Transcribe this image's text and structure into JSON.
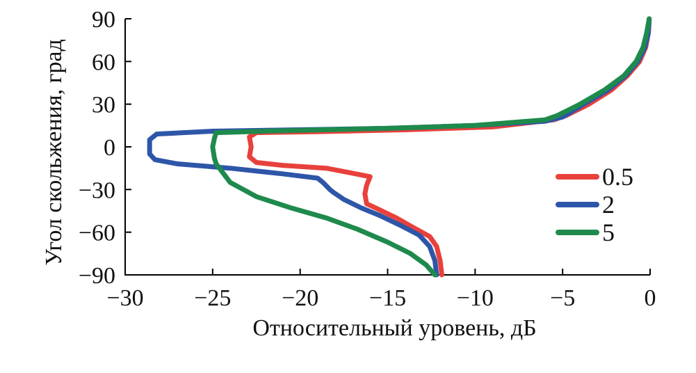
{
  "chart_data": {
    "type": "line",
    "xlabel": "Относительный уровень, дБ",
    "ylabel": "Угол скольжения, град",
    "xlim": [
      -30,
      0
    ],
    "ylim": [
      -90,
      90
    ],
    "x_ticks": [
      -30,
      -25,
      -20,
      -15,
      -10,
      -5,
      0
    ],
    "y_ticks": [
      -90,
      -60,
      -30,
      0,
      30,
      60,
      90
    ],
    "x_tick_labels": [
      "−30",
      "−25",
      "−20",
      "−15",
      "−10",
      "−5",
      "0"
    ],
    "y_tick_labels": [
      "−90",
      "−60",
      "−30",
      "0",
      "30",
      "60",
      "90"
    ],
    "grid": false,
    "legend_position": "right-middle",
    "series": [
      {
        "name": "0.5",
        "color": "#e8413c",
        "points": [
          [
            -11.9,
            -90
          ],
          [
            -12.0,
            -80
          ],
          [
            -12.2,
            -70
          ],
          [
            -12.6,
            -63
          ],
          [
            -13.5,
            -57
          ],
          [
            -14.5,
            -50
          ],
          [
            -15.5,
            -44
          ],
          [
            -16.2,
            -40
          ],
          [
            -16.3,
            -33
          ],
          [
            -16.2,
            -27
          ],
          [
            -16.0,
            -21
          ],
          [
            -16.6,
            -19.5
          ],
          [
            -18.5,
            -15
          ],
          [
            -21.0,
            -13
          ],
          [
            -22.5,
            -11
          ],
          [
            -22.9,
            -7
          ],
          [
            -22.8,
            0
          ],
          [
            -22.9,
            7
          ],
          [
            -22.5,
            10
          ],
          [
            -19.0,
            10.6
          ],
          [
            -14.0,
            12
          ],
          [
            -9.0,
            14
          ],
          [
            -5.5,
            19
          ],
          [
            -4.8,
            22
          ],
          [
            -3.5,
            30
          ],
          [
            -2.2,
            40
          ],
          [
            -1.3,
            50
          ],
          [
            -0.6,
            60
          ],
          [
            -0.25,
            70
          ],
          [
            -0.1,
            80
          ],
          [
            -0.05,
            90
          ]
        ]
      },
      {
        "name": "2",
        "color": "#2e56a8",
        "points": [
          [
            -12.2,
            -90
          ],
          [
            -12.3,
            -80
          ],
          [
            -12.6,
            -70
          ],
          [
            -13.2,
            -62
          ],
          [
            -14.3,
            -55
          ],
          [
            -15.5,
            -48
          ],
          [
            -16.5,
            -43
          ],
          [
            -17.5,
            -37
          ],
          [
            -18.1,
            -32
          ],
          [
            -18.3,
            -30
          ],
          [
            -18.7,
            -25
          ],
          [
            -19.0,
            -22
          ],
          [
            -21.0,
            -19
          ],
          [
            -24.0,
            -15
          ],
          [
            -27.0,
            -12
          ],
          [
            -28.3,
            -9
          ],
          [
            -28.6,
            -5
          ],
          [
            -28.6,
            0
          ],
          [
            -28.6,
            5
          ],
          [
            -28.2,
            9
          ],
          [
            -25.0,
            11
          ],
          [
            -20.0,
            12
          ],
          [
            -15.0,
            13
          ],
          [
            -10.0,
            15
          ],
          [
            -6.0,
            18
          ],
          [
            -5.0,
            21
          ],
          [
            -3.8,
            30
          ],
          [
            -2.4,
            40
          ],
          [
            -1.4,
            50
          ],
          [
            -0.7,
            60
          ],
          [
            -0.3,
            70
          ],
          [
            -0.1,
            80
          ],
          [
            -0.05,
            90
          ]
        ]
      },
      {
        "name": "5",
        "color": "#1e8a4c",
        "points": [
          [
            -12.3,
            -90
          ],
          [
            -12.8,
            -83
          ],
          [
            -13.7,
            -75
          ],
          [
            -15.0,
            -67
          ],
          [
            -16.7,
            -58
          ],
          [
            -18.5,
            -50
          ],
          [
            -20.5,
            -43
          ],
          [
            -22.5,
            -35
          ],
          [
            -24.0,
            -25
          ],
          [
            -24.8,
            -12
          ],
          [
            -24.9,
            -8
          ],
          [
            -25.0,
            0
          ],
          [
            -24.9,
            6
          ],
          [
            -24.8,
            10
          ],
          [
            -22.0,
            11
          ],
          [
            -15.0,
            13
          ],
          [
            -10.0,
            15
          ],
          [
            -6.0,
            19
          ],
          [
            -5.3,
            22
          ],
          [
            -4.0,
            30
          ],
          [
            -2.6,
            40
          ],
          [
            -1.5,
            50
          ],
          [
            -0.8,
            60
          ],
          [
            -0.4,
            70
          ],
          [
            -0.2,
            80
          ],
          [
            -0.05,
            90
          ]
        ]
      }
    ]
  }
}
